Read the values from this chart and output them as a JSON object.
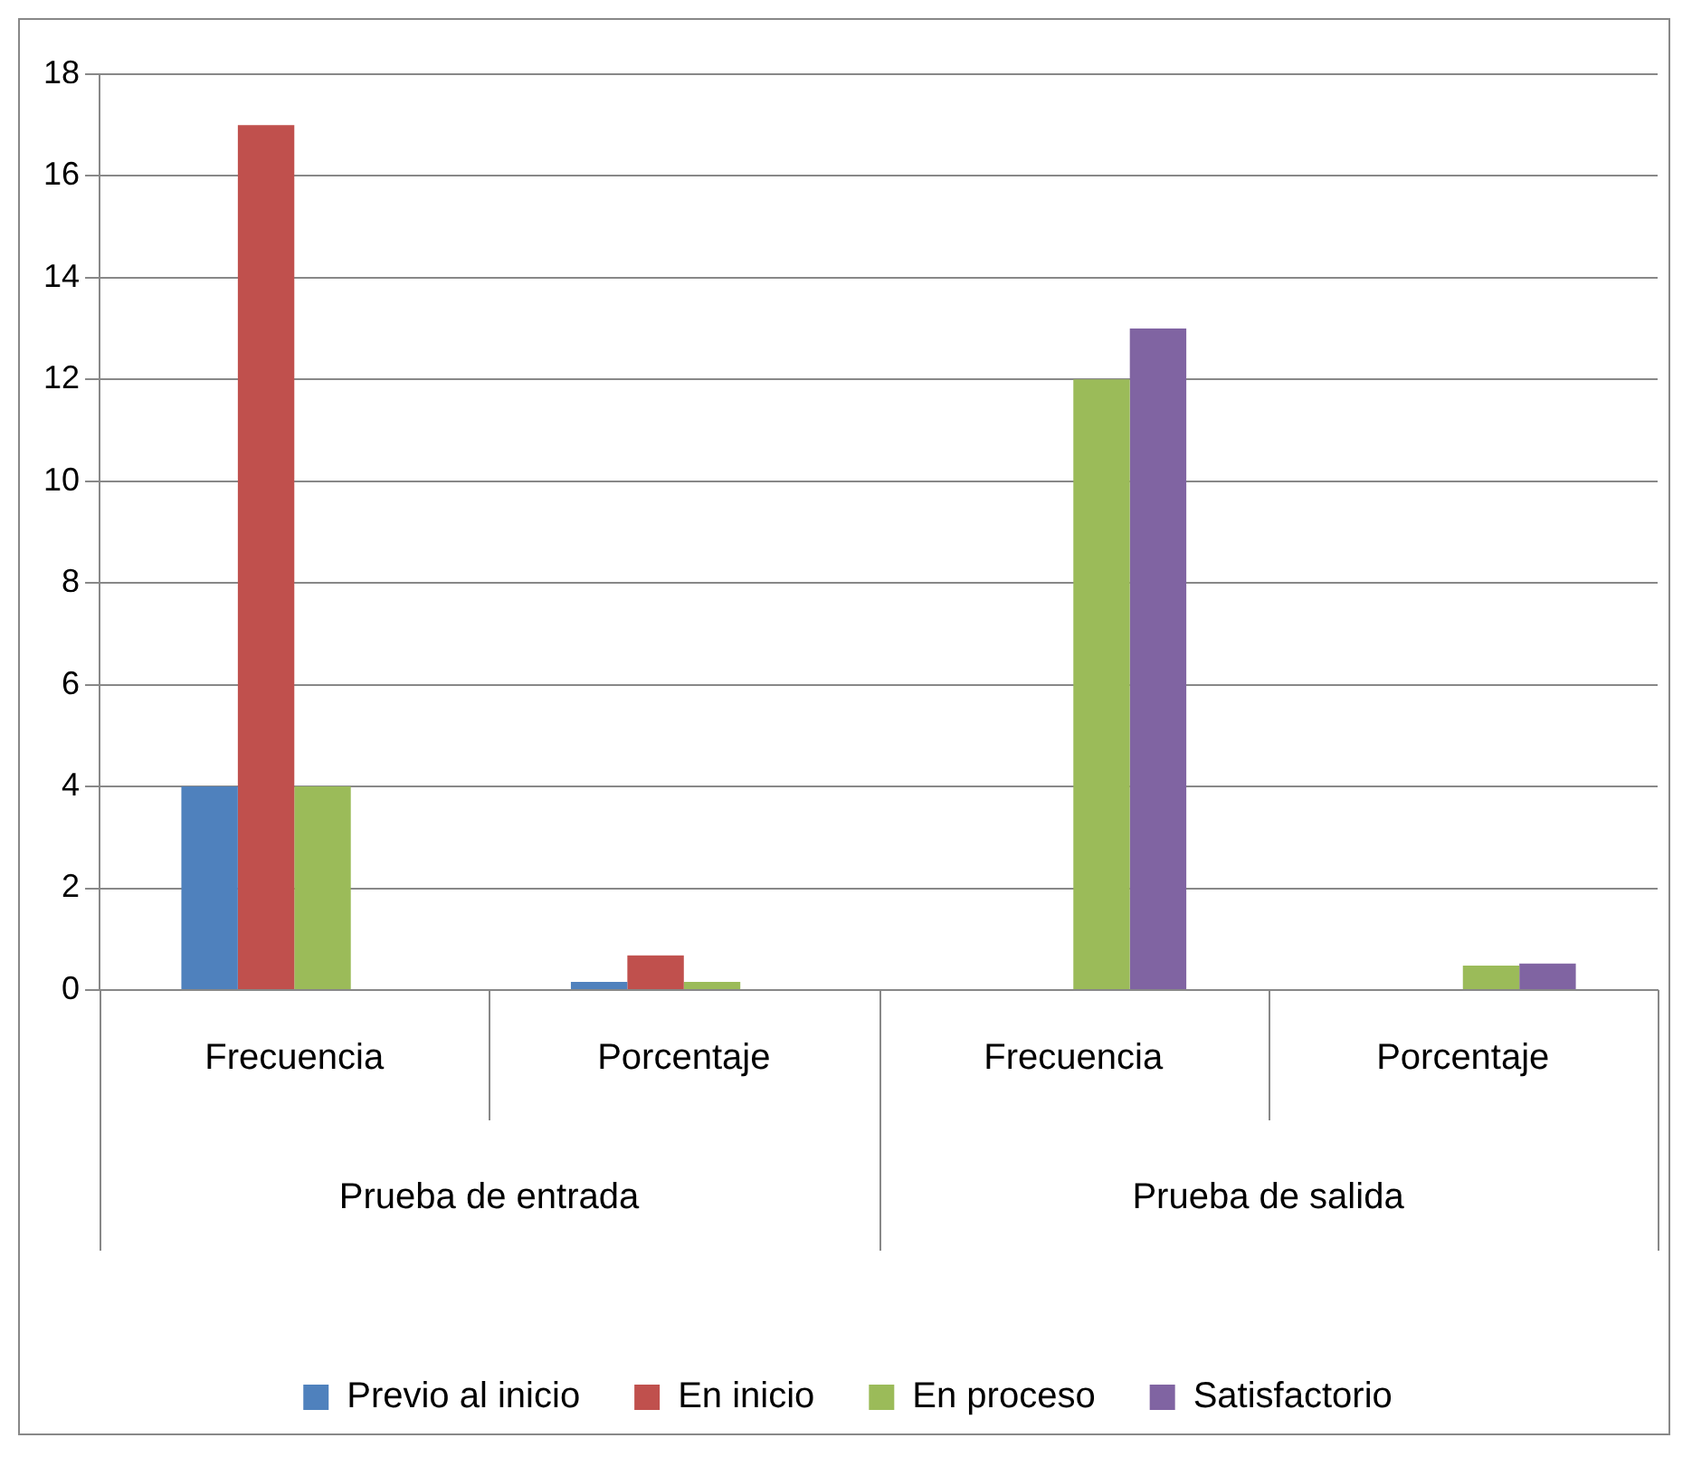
{
  "chart_data": {
    "type": "bar",
    "categories": [
      "Frecuencia",
      "Porcentaje",
      "Frecuencia",
      "Porcentaje"
    ],
    "series": [
      {
        "name": "Previo al inicio",
        "color": "#4f81bd",
        "values": [
          4,
          0.16,
          null,
          null
        ]
      },
      {
        "name": "En inicio",
        "color": "#c0504d",
        "values": [
          17,
          0.68,
          null,
          null
        ]
      },
      {
        "name": "En proceso",
        "color": "#9bbb59",
        "values": [
          4,
          0.16,
          12,
          0.48
        ]
      },
      {
        "name": "Satisfactorio",
        "color": "#8064a2",
        "values": [
          null,
          null,
          13,
          0.52
        ]
      }
    ],
    "annotations": [
      "Prueba de entrada",
      "Prueba de salida"
    ],
    "ylim": [
      0,
      18
    ],
    "yticks": [
      0,
      2,
      4,
      6,
      8,
      10,
      12,
      14,
      16,
      18
    ],
    "grid": "y",
    "legend": "bottom"
  }
}
